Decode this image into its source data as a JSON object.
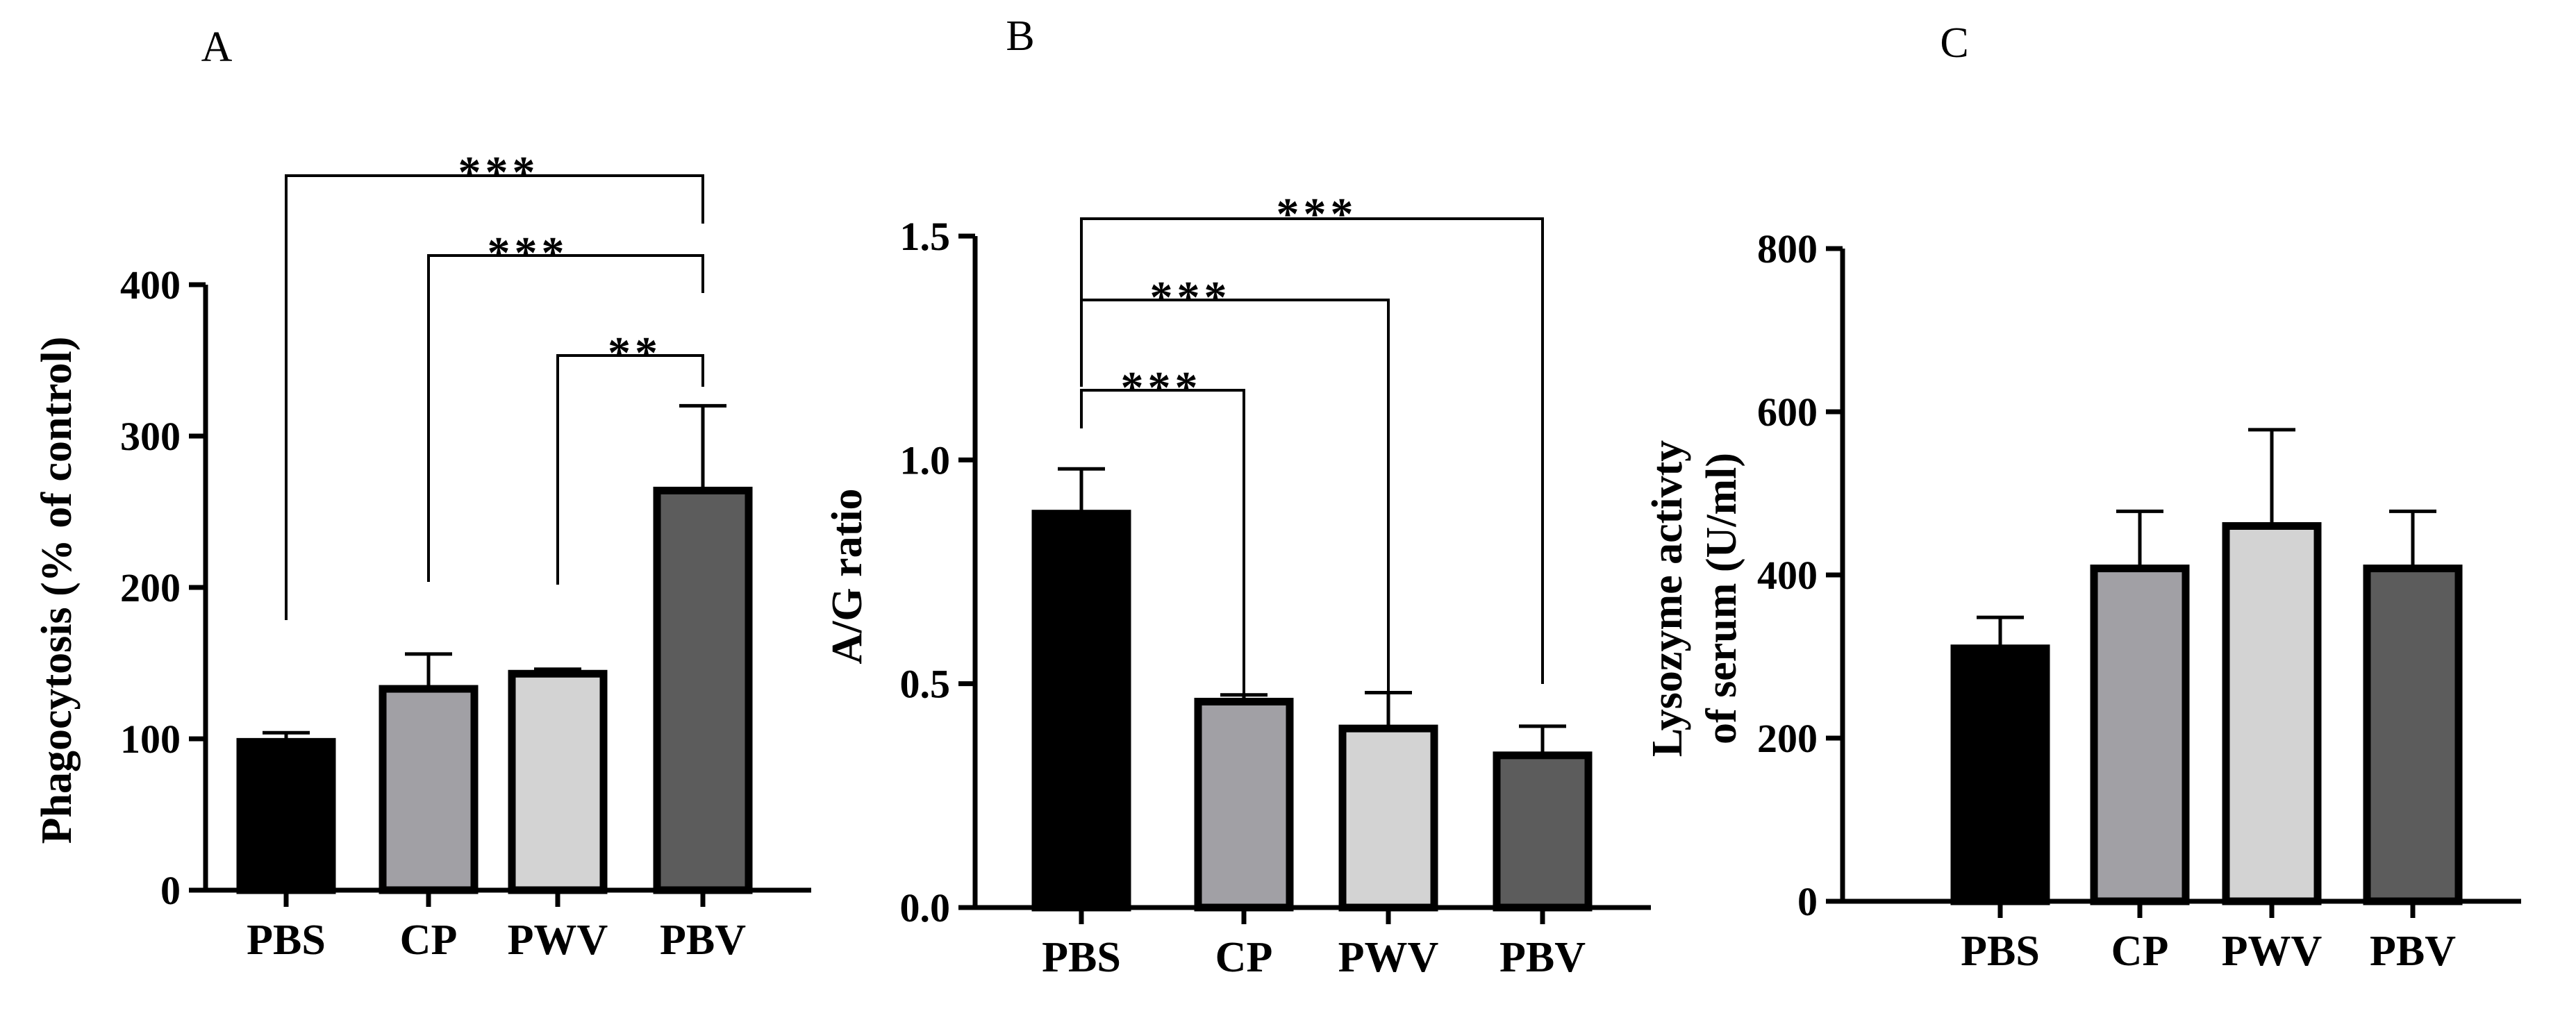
{
  "chart_data": [
    {
      "type": "bar",
      "panel_label": "A",
      "categories": [
        "PBS",
        "CP",
        "PWV",
        "PBV"
      ],
      "values": [
        98,
        133,
        143,
        264
      ],
      "errors": [
        6,
        23,
        3,
        56
      ],
      "colors": [
        "#000000",
        "#a1a0a5",
        "#d3d3d3",
        "#5c5c5c"
      ],
      "ylabel": "Phagocytosis (% of control)",
      "ylabel_lines": [
        "Phagocytosis (% of control)"
      ],
      "ylim": [
        0,
        400
      ],
      "yticks": [
        0,
        100,
        200,
        300,
        400
      ],
      "comparisons": [
        {
          "from": 0,
          "to": 3,
          "label": "***"
        },
        {
          "from": 1,
          "to": 3,
          "label": "***"
        },
        {
          "from": 2,
          "to": 3,
          "label": "**"
        }
      ]
    },
    {
      "type": "bar",
      "panel_label": "B",
      "categories": [
        "PBS",
        "CP",
        "PWV",
        "PBV"
      ],
      "values": [
        0.88,
        0.46,
        0.4,
        0.34
      ],
      "errors": [
        0.1,
        0.015,
        0.08,
        0.065
      ],
      "colors": [
        "#000000",
        "#a1a0a5",
        "#d3d3d3",
        "#5c5c5c"
      ],
      "ylabel": "A/G ratio",
      "ylabel_lines": [
        "A/G ratio"
      ],
      "ylim": [
        0,
        1.5
      ],
      "yticks": [
        "0.0",
        "0.5",
        "1.0",
        "1.5"
      ],
      "comparisons": [
        {
          "from": 0,
          "to": 1,
          "label": "***"
        },
        {
          "from": 0,
          "to": 2,
          "label": "***"
        },
        {
          "from": 0,
          "to": 3,
          "label": "***"
        }
      ]
    },
    {
      "type": "bar",
      "panel_label": "C",
      "categories": [
        "PBS",
        "CP",
        "PWV",
        "PBV"
      ],
      "values": [
        310,
        408,
        460,
        408
      ],
      "errors": [
        38,
        70,
        118,
        70
      ],
      "colors": [
        "#000000",
        "#a1a0a5",
        "#d3d3d3",
        "#5c5c5c"
      ],
      "ylabel": "Lysozyme activty of serum (U/ml)",
      "ylabel_lines": [
        "Lysozyme activty",
        "of serum (U/ml)"
      ],
      "ylim": [
        0,
        800
      ],
      "yticks": [
        0,
        200,
        400,
        600,
        800
      ],
      "comparisons": []
    }
  ]
}
